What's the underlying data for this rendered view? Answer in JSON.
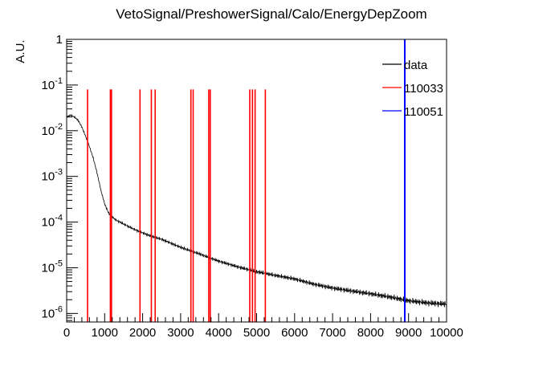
{
  "chart_data": {
    "type": "line",
    "title": "VetoSignal/PreshowerSignal/Calo/EnergyDepZoom",
    "xlabel": "",
    "ylabel": "A.U.",
    "xlim": [
      0,
      10000
    ],
    "ylim": [
      6.5e-07,
      1.0
    ],
    "yscale": "log",
    "x_ticks": [
      0,
      1000,
      2000,
      3000,
      4000,
      5000,
      6000,
      7000,
      8000,
      9000,
      10000
    ],
    "y_ticks": [
      {
        "value": 1e-06,
        "base": "10",
        "exp": "-6"
      },
      {
        "value": 1e-05,
        "base": "10",
        "exp": "-5"
      },
      {
        "value": 0.0001,
        "base": "10",
        "exp": "-4"
      },
      {
        "value": 0.001,
        "base": "10",
        "exp": "-3"
      },
      {
        "value": 0.01,
        "base": "10",
        "exp": "-2"
      },
      {
        "value": 0.1,
        "base": "10",
        "exp": "-1"
      },
      {
        "value": 1,
        "base": "1",
        "exp": ""
      }
    ],
    "legend_position": "top-right",
    "series": [
      {
        "name": "data",
        "color": "#000000",
        "kind": "histogram",
        "x": [
          0,
          100,
          200,
          300,
          400,
          500,
          600,
          700,
          800,
          900,
          1000,
          1100,
          1200,
          1300,
          1400,
          1600,
          1800,
          2000,
          2200,
          2500,
          3000,
          3500,
          4000,
          4500,
          5000,
          5500,
          6000,
          6500,
          7000,
          7500,
          8000,
          8500,
          9000,
          9500,
          10000
        ],
        "y": [
          0.02,
          0.022,
          0.02,
          0.017,
          0.012,
          0.0075,
          0.0045,
          0.0025,
          0.0012,
          0.0005,
          0.00025,
          0.00016,
          0.00013,
          0.00011,
          0.0001,
          8.2e-05,
          6.8e-05,
          5.8e-05,
          5e-05,
          4.2e-05,
          2.8e-05,
          2e-05,
          1.4e-05,
          1.05e-05,
          8.2e-06,
          6.8e-06,
          5.7e-06,
          4.4e-06,
          3.6e-06,
          3.1e-06,
          2.7e-06,
          2.3e-06,
          1.9e-06,
          1.7e-06,
          1.6e-06
        ]
      },
      {
        "name": "110033",
        "color": "#ff0000",
        "kind": "spikes",
        "x": [
          550,
          1150,
          1180,
          1930,
          2230,
          2330,
          3270,
          3330,
          3740,
          3780,
          4820,
          4890,
          4960,
          5230
        ],
        "y": [
          0.08,
          0.08,
          0.08,
          0.08,
          0.08,
          0.08,
          0.08,
          0.08,
          0.08,
          0.08,
          0.08,
          0.08,
          0.08,
          0.08
        ]
      },
      {
        "name": "110051",
        "color": "#0000ff",
        "kind": "spikes",
        "x": [
          8900
        ],
        "y": [
          1.0
        ]
      }
    ]
  }
}
